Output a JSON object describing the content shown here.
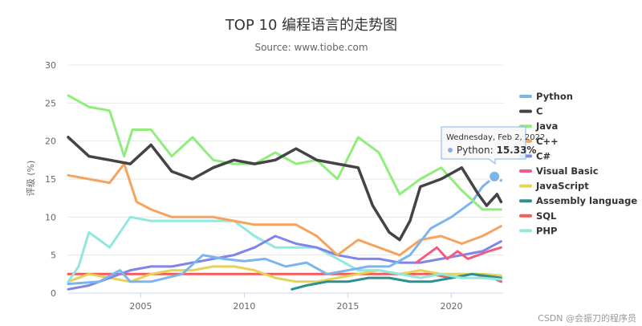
{
  "chart_data": {
    "type": "line",
    "title": "TOP 10 编程语言的走势图",
    "subtitle": "Source: www.tiobe.com",
    "ylabel": "评级 (%)",
    "xlabel": "",
    "xlim": [
      2001.5,
      2022.5
    ],
    "ylim": [
      0,
      30
    ],
    "y_ticks": [
      "0",
      "5",
      "10",
      "15",
      "20",
      "25",
      "30"
    ],
    "x_ticks": [
      {
        "value": 2005,
        "label": "2005"
      },
      {
        "value": 2010,
        "label": "2010"
      },
      {
        "value": 2015,
        "label": "2015"
      },
      {
        "value": 2020,
        "label": "2020"
      }
    ],
    "grid": "horizontal",
    "legend": "right",
    "series": [
      {
        "name": "Python",
        "color": "#7cb5ec",
        "points": [
          [
            2001.5,
            1.2
          ],
          [
            2003,
            1.5
          ],
          [
            2004,
            3.0
          ],
          [
            2004.5,
            1.5
          ],
          [
            2005.5,
            1.5
          ],
          [
            2007,
            2.5
          ],
          [
            2008,
            5.0
          ],
          [
            2009,
            4.5
          ],
          [
            2010,
            4.2
          ],
          [
            2011,
            4.5
          ],
          [
            2012,
            3.5
          ],
          [
            2013,
            4.0
          ],
          [
            2014,
            2.5
          ],
          [
            2015,
            3.0
          ],
          [
            2016,
            3.5
          ],
          [
            2017,
            3.5
          ],
          [
            2018,
            5.0
          ],
          [
            2019,
            8.5
          ],
          [
            2020,
            10.0
          ],
          [
            2021,
            12.0
          ],
          [
            2021.5,
            14.0
          ],
          [
            2022.08,
            15.33
          ],
          [
            2022.4,
            14.8
          ]
        ]
      },
      {
        "name": "C",
        "color": "#434348",
        "points": [
          [
            2001.5,
            20.5
          ],
          [
            2002.5,
            18.0
          ],
          [
            2003.5,
            17.5
          ],
          [
            2004.5,
            17.0
          ],
          [
            2005.5,
            19.5
          ],
          [
            2006.5,
            16.0
          ],
          [
            2007.5,
            15.0
          ],
          [
            2008.5,
            16.5
          ],
          [
            2009.5,
            17.5
          ],
          [
            2010.5,
            17.0
          ],
          [
            2011.5,
            17.5
          ],
          [
            2012.5,
            19.0
          ],
          [
            2013.5,
            17.5
          ],
          [
            2014.5,
            17.0
          ],
          [
            2015.5,
            16.5
          ],
          [
            2016.2,
            11.5
          ],
          [
            2017,
            8.0
          ],
          [
            2017.5,
            7.0
          ],
          [
            2018,
            9.5
          ],
          [
            2018.5,
            14.0
          ],
          [
            2019.5,
            15.0
          ],
          [
            2020.5,
            16.5
          ],
          [
            2021.3,
            13.0
          ],
          [
            2021.7,
            11.5
          ],
          [
            2022.2,
            13.0
          ],
          [
            2022.4,
            12.0
          ]
        ]
      },
      {
        "name": "Java",
        "color": "#90ed7d",
        "points": [
          [
            2001.5,
            26.0
          ],
          [
            2002.5,
            24.5
          ],
          [
            2003.5,
            24.0
          ],
          [
            2004.2,
            18.0
          ],
          [
            2004.6,
            21.5
          ],
          [
            2005.5,
            21.5
          ],
          [
            2006.5,
            18.0
          ],
          [
            2007.5,
            20.5
          ],
          [
            2008.5,
            17.5
          ],
          [
            2009.5,
            17.0
          ],
          [
            2010.5,
            17.0
          ],
          [
            2011.5,
            18.5
          ],
          [
            2012.5,
            17.0
          ],
          [
            2013.5,
            17.5
          ],
          [
            2014.5,
            15.0
          ],
          [
            2015.5,
            20.5
          ],
          [
            2016.5,
            18.5
          ],
          [
            2017.5,
            13.0
          ],
          [
            2018.5,
            15.0
          ],
          [
            2019.5,
            16.5
          ],
          [
            2020.5,
            13.5
          ],
          [
            2021.5,
            11.0
          ],
          [
            2022.4,
            11.0
          ]
        ]
      },
      {
        "name": "C++",
        "color": "#f7a35c",
        "points": [
          [
            2001.5,
            15.5
          ],
          [
            2002.5,
            15.0
          ],
          [
            2003.5,
            14.5
          ],
          [
            2004.2,
            17.0
          ],
          [
            2004.8,
            12.0
          ],
          [
            2005.5,
            11.0
          ],
          [
            2006.5,
            10.0
          ],
          [
            2007.5,
            10.0
          ],
          [
            2008.5,
            10.0
          ],
          [
            2009.5,
            9.5
          ],
          [
            2010.5,
            9.0
          ],
          [
            2011.5,
            9.0
          ],
          [
            2012.5,
            9.0
          ],
          [
            2013.5,
            7.5
          ],
          [
            2014.5,
            5.0
          ],
          [
            2015.5,
            7.0
          ],
          [
            2016.5,
            6.0
          ],
          [
            2017.5,
            5.0
          ],
          [
            2018.5,
            7.0
          ],
          [
            2019.5,
            7.5
          ],
          [
            2020.5,
            6.5
          ],
          [
            2021.5,
            7.5
          ],
          [
            2022.4,
            8.8
          ]
        ]
      },
      {
        "name": "C#",
        "color": "#8085e9",
        "points": [
          [
            2001.5,
            0.5
          ],
          [
            2002.5,
            1.0
          ],
          [
            2003.5,
            2.0
          ],
          [
            2004.5,
            3.0
          ],
          [
            2005.5,
            3.5
          ],
          [
            2006.5,
            3.5
          ],
          [
            2007.5,
            4.0
          ],
          [
            2008.5,
            4.5
          ],
          [
            2009.5,
            5.0
          ],
          [
            2010.5,
            6.0
          ],
          [
            2011.5,
            7.5
          ],
          [
            2012.5,
            6.5
          ],
          [
            2013.5,
            6.0
          ],
          [
            2014.5,
            5.0
          ],
          [
            2015.5,
            4.5
          ],
          [
            2016.5,
            4.5
          ],
          [
            2017.5,
            4.0
          ],
          [
            2018.5,
            4.0
          ],
          [
            2019.5,
            4.5
          ],
          [
            2020.5,
            5.0
          ],
          [
            2021.5,
            5.5
          ],
          [
            2022.4,
            6.8
          ]
        ]
      },
      {
        "name": "Visual Basic",
        "color": "#f15c80",
        "points": [
          [
            2018.3,
            4.0
          ],
          [
            2018.8,
            5.0
          ],
          [
            2019.3,
            6.0
          ],
          [
            2019.8,
            4.5
          ],
          [
            2020.3,
            5.5
          ],
          [
            2020.8,
            4.5
          ],
          [
            2021.3,
            5.0
          ],
          [
            2021.8,
            5.5
          ],
          [
            2022.4,
            6.0
          ]
        ]
      },
      {
        "name": "JavaScript",
        "color": "#e4d354",
        "points": [
          [
            2001.5,
            1.5
          ],
          [
            2002.5,
            2.5
          ],
          [
            2003.5,
            2.0
          ],
          [
            2004.5,
            1.5
          ],
          [
            2005.5,
            2.5
          ],
          [
            2006.5,
            3.0
          ],
          [
            2007.5,
            3.0
          ],
          [
            2008.5,
            3.5
          ],
          [
            2009.5,
            3.5
          ],
          [
            2010.5,
            3.0
          ],
          [
            2011.5,
            2.0
          ],
          [
            2012.5,
            1.5
          ],
          [
            2013.5,
            1.5
          ],
          [
            2014.5,
            2.0
          ],
          [
            2015.5,
            2.5
          ],
          [
            2016.5,
            3.0
          ],
          [
            2017.5,
            2.5
          ],
          [
            2018.5,
            3.0
          ],
          [
            2019.5,
            2.5
          ],
          [
            2020.5,
            2.5
          ],
          [
            2021.5,
            2.5
          ],
          [
            2022.4,
            2.3
          ]
        ]
      },
      {
        "name": "Assembly language",
        "color": "#2b908f",
        "points": [
          [
            2012.3,
            0.5
          ],
          [
            2013,
            1.0
          ],
          [
            2014,
            1.5
          ],
          [
            2015,
            1.5
          ],
          [
            2016,
            2.0
          ],
          [
            2017,
            2.0
          ],
          [
            2018,
            1.5
          ],
          [
            2019,
            1.5
          ],
          [
            2020,
            2.0
          ],
          [
            2021,
            2.5
          ],
          [
            2022.4,
            2.0
          ]
        ]
      },
      {
        "name": "SQL",
        "color": "#f45b5b",
        "points": [
          [
            2001.5,
            2.5
          ],
          [
            2003,
            2.5
          ],
          [
            2004.5,
            2.5
          ],
          [
            2006,
            2.5
          ],
          [
            2008,
            2.5
          ],
          [
            2010,
            2.5
          ],
          [
            2012,
            2.5
          ],
          [
            2014,
            2.5
          ],
          [
            2016,
            2.5
          ],
          [
            2018,
            2.5
          ],
          [
            2019,
            2.5
          ],
          [
            2020,
            2.0
          ],
          [
            2021,
            2.5
          ],
          [
            2022,
            2.0
          ],
          [
            2022.4,
            1.5
          ]
        ]
      },
      {
        "name": "PHP",
        "color": "#91e8e1",
        "points": [
          [
            2001.5,
            1.5
          ],
          [
            2002,
            3.5
          ],
          [
            2002.5,
            8.0
          ],
          [
            2003.5,
            6.0
          ],
          [
            2004.5,
            10.0
          ],
          [
            2005.5,
            9.5
          ],
          [
            2006.5,
            9.5
          ],
          [
            2007.5,
            9.5
          ],
          [
            2008.5,
            9.5
          ],
          [
            2009.5,
            9.5
          ],
          [
            2010.5,
            7.5
          ],
          [
            2011.5,
            6.0
          ],
          [
            2012.5,
            6.0
          ],
          [
            2013.5,
            6.0
          ],
          [
            2014.5,
            4.5
          ],
          [
            2015.5,
            3.0
          ],
          [
            2016.5,
            3.0
          ],
          [
            2017.5,
            2.5
          ],
          [
            2018.5,
            2.0
          ],
          [
            2019.5,
            2.5
          ],
          [
            2020.5,
            2.0
          ],
          [
            2021.5,
            2.0
          ],
          [
            2022.4,
            1.8
          ]
        ]
      }
    ],
    "tooltip": {
      "date": "Wednesday, Feb 2, 2022",
      "series": "Python",
      "value_label": "15.33%",
      "x": 2022.08,
      "y": 15.33,
      "color": "#7cb5ec"
    }
  },
  "watermark": "CSDN @会振刀的程序员"
}
